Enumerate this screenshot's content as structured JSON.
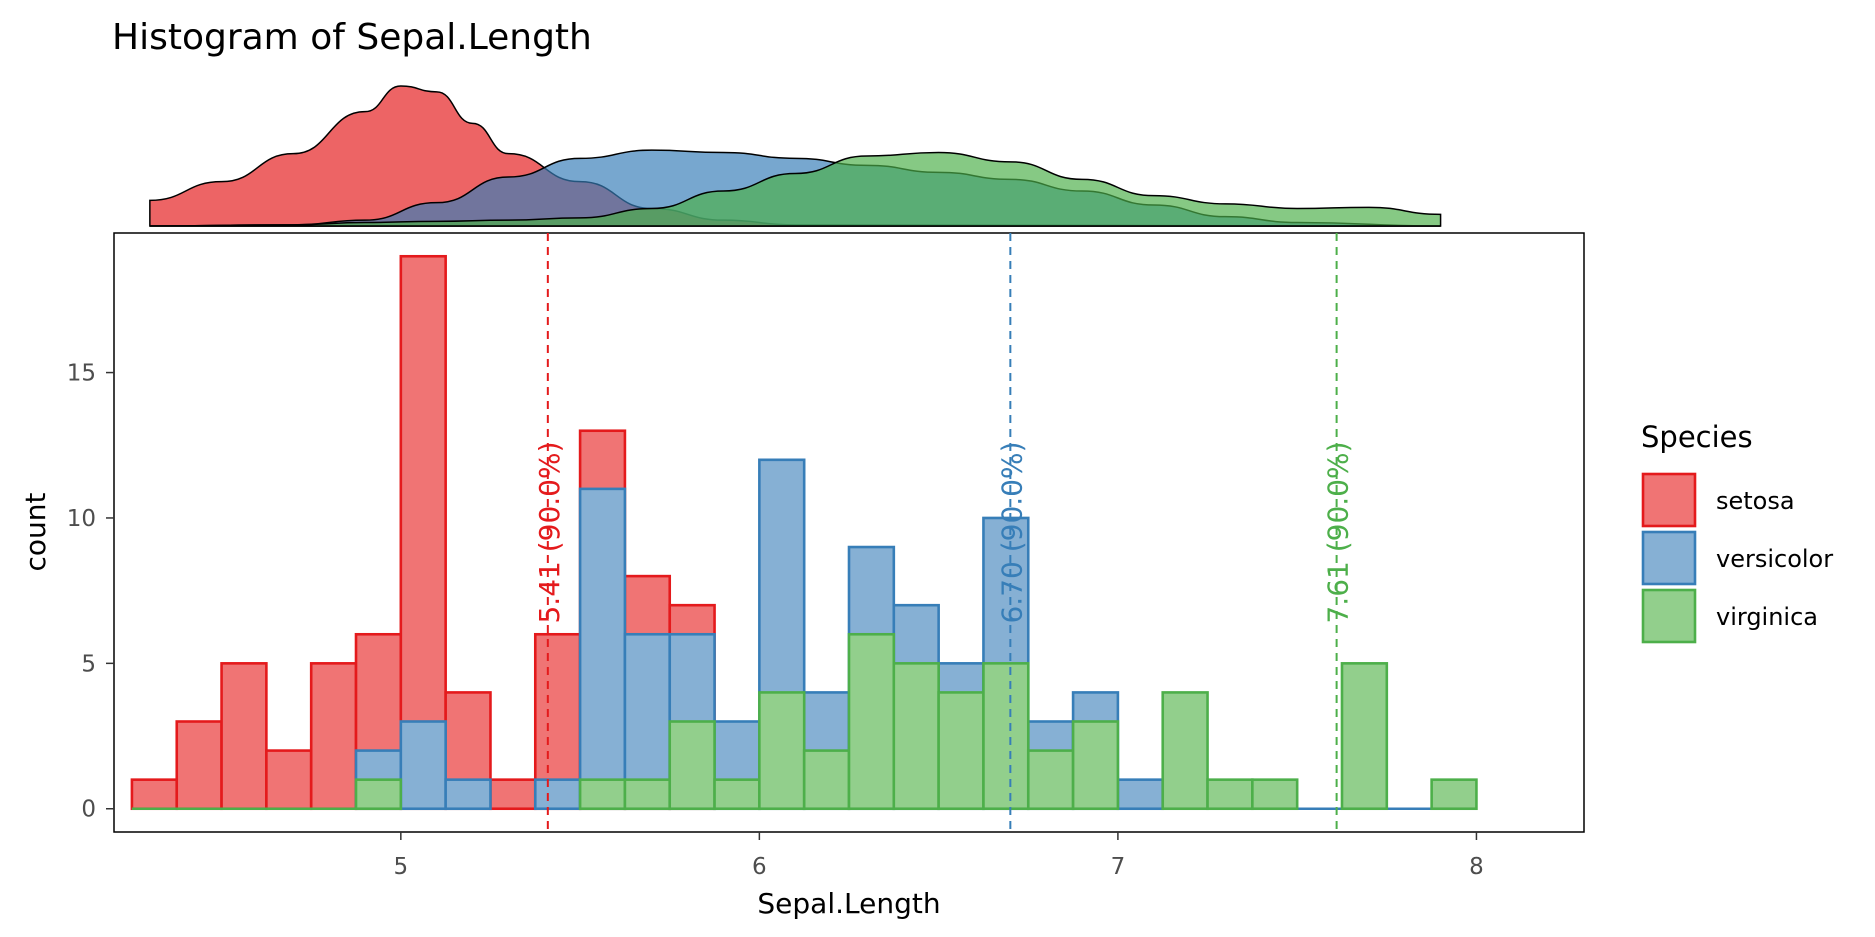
{
  "chart_data": {
    "type": "bar",
    "subtype": "stacked-histogram-with-marginal-density",
    "title": "Histogram of Sepal.Length",
    "xlabel": "Sepal.Length",
    "ylabel": "count",
    "xlim": [
      4.2,
      8.3
    ],
    "ylim": [
      -0.8,
      19.8
    ],
    "x_ticks": [
      5,
      6,
      7,
      8
    ],
    "y_ticks": [
      0,
      5,
      10,
      15
    ],
    "grid": false,
    "legend": {
      "title": "Species",
      "placement": "right",
      "entries": [
        "setosa",
        "versicolor",
        "virginica"
      ]
    },
    "bin_width": 0.125,
    "bins_start": 4.25,
    "series": [
      {
        "name": "setosa",
        "fill": "#f07474",
        "stroke": "#e41a1c",
        "stack_offset": 0,
        "counts": [
          1,
          3,
          5,
          2,
          5,
          6,
          19,
          4,
          1,
          6,
          13,
          8,
          7,
          0,
          0,
          0,
          0,
          0,
          0,
          0,
          0,
          0,
          0,
          0,
          0,
          0,
          0,
          0,
          0,
          0
        ]
      },
      {
        "name": "versicolor",
        "fill": "#86b0d4",
        "stroke": "#377eb8",
        "stack_offset": 1,
        "counts": [
          0,
          0,
          0,
          0,
          0,
          2,
          3,
          1,
          0,
          1,
          11,
          6,
          6,
          3,
          12,
          4,
          9,
          7,
          5,
          10,
          3,
          4,
          1,
          0,
          0,
          0,
          0,
          0,
          0,
          0
        ]
      },
      {
        "name": "virginica",
        "fill": "#92cf8c",
        "stroke": "#4daf4a",
        "stack_offset": 2,
        "counts": [
          0,
          0,
          0,
          0,
          0,
          1,
          0,
          0,
          0,
          0,
          1,
          1,
          3,
          1,
          4,
          2,
          6,
          5,
          4,
          5,
          2,
          3,
          0,
          4,
          1,
          1,
          0,
          5,
          0,
          1
        ]
      }
    ],
    "reference_lines": [
      {
        "x": 5.41,
        "label": "5.41 (90.0%)",
        "color": "#e41a1c"
      },
      {
        "x": 6.7,
        "label": "6.70 (90.0%)",
        "color": "#377eb8"
      },
      {
        "x": 7.61,
        "label": "7.61 (90.0%)",
        "color": "#4daf4a"
      }
    ],
    "density": {
      "x_range": [
        4.3,
        7.9
      ],
      "series": [
        {
          "name": "setosa",
          "fill": "#e41a1c",
          "points": [
            [
              4.3,
              0.22
            ],
            [
              4.5,
              0.38
            ],
            [
              4.7,
              0.62
            ],
            [
              4.9,
              0.98
            ],
            [
              5.0,
              1.2
            ],
            [
              5.1,
              1.15
            ],
            [
              5.2,
              0.88
            ],
            [
              5.3,
              0.62
            ],
            [
              5.5,
              0.38
            ],
            [
              5.7,
              0.15
            ],
            [
              5.9,
              0.05
            ],
            [
              6.1,
              0.01
            ],
            [
              7.9,
              0.0
            ]
          ]
        },
        {
          "name": "versicolor",
          "fill": "#377eb8",
          "points": [
            [
              4.3,
              0.0
            ],
            [
              4.7,
              0.01
            ],
            [
              4.9,
              0.05
            ],
            [
              5.1,
              0.2
            ],
            [
              5.3,
              0.42
            ],
            [
              5.5,
              0.58
            ],
            [
              5.7,
              0.65
            ],
            [
              5.9,
              0.63
            ],
            [
              6.1,
              0.58
            ],
            [
              6.3,
              0.52
            ],
            [
              6.5,
              0.46
            ],
            [
              6.7,
              0.4
            ],
            [
              6.9,
              0.3
            ],
            [
              7.1,
              0.18
            ],
            [
              7.3,
              0.08
            ],
            [
              7.5,
              0.03
            ],
            [
              7.9,
              0.0
            ]
          ]
        },
        {
          "name": "virginica",
          "fill": "#4daf4a",
          "points": [
            [
              4.3,
              0.0
            ],
            [
              4.7,
              0.01
            ],
            [
              4.9,
              0.03
            ],
            [
              5.1,
              0.04
            ],
            [
              5.3,
              0.05
            ],
            [
              5.5,
              0.07
            ],
            [
              5.7,
              0.15
            ],
            [
              5.9,
              0.3
            ],
            [
              6.1,
              0.45
            ],
            [
              6.3,
              0.6
            ],
            [
              6.5,
              0.63
            ],
            [
              6.7,
              0.55
            ],
            [
              6.9,
              0.4
            ],
            [
              7.1,
              0.26
            ],
            [
              7.3,
              0.19
            ],
            [
              7.5,
              0.15
            ],
            [
              7.7,
              0.16
            ],
            [
              7.9,
              0.1
            ]
          ]
        }
      ]
    }
  }
}
